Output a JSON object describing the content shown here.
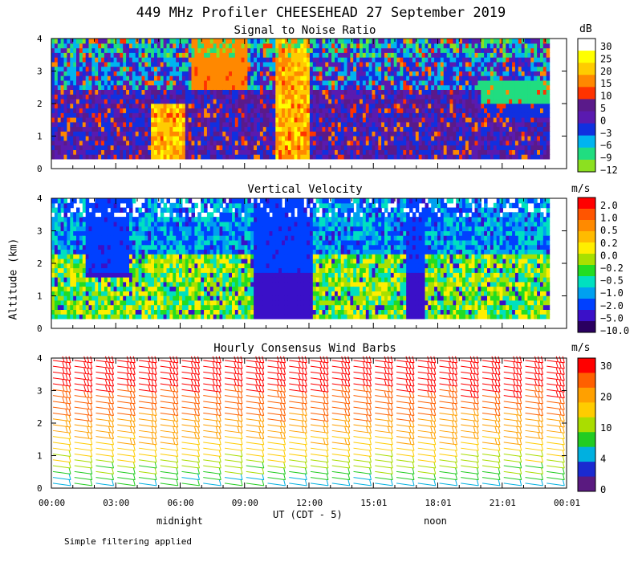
{
  "figure": {
    "title": "449 MHz Profiler CHEESEHEAD 27 September 2019",
    "ylabel": "Altitude (km)",
    "xlabel": "UT  (CDT - 5)",
    "x_ticks": [
      "00:00",
      "03:00",
      "06:00",
      "09:00",
      "12:00",
      "15:01",
      "18:01",
      "21:01",
      "00:01"
    ],
    "local_labels": [
      "midnight",
      "noon"
    ],
    "footnote": "Simple filtering applied"
  },
  "chart_data": [
    {
      "type": "heatmap",
      "title": "Signal to Noise Ratio",
      "unit": "dB",
      "ylim": [
        0,
        4
      ],
      "y_ticks": [
        "0",
        "1",
        "2",
        "3",
        "4"
      ],
      "xlim_hours": [
        0,
        24
      ],
      "colorbar": {
        "labels": [
          "30",
          "25",
          "20",
          "15",
          "10",
          "5",
          "0",
          "−3",
          "−6",
          "−9",
          "−12"
        ],
        "colors": [
          "#ffffff",
          "#ffff00",
          "#ffcc00",
          "#ff8800",
          "#ff3300",
          "#5a1a8a",
          "#5a1ab0",
          "#1030e0",
          "#00b4f0",
          "#20dd80",
          "#8ce020"
        ]
      }
    },
    {
      "type": "heatmap",
      "title": "Vertical Velocity",
      "unit": "m/s",
      "ylim": [
        0,
        4
      ],
      "y_ticks": [
        "0",
        "1",
        "2",
        "3",
        "4"
      ],
      "xlim_hours": [
        0,
        24
      ],
      "colorbar": {
        "labels": [
          "2.0",
          "1.0",
          "0.5",
          "0.2",
          "0.0",
          "−0.2",
          "−0.5",
          "−1.0",
          "−2.0",
          "−5.0",
          "−10.0"
        ],
        "colors": [
          "#ff0000",
          "#ff5500",
          "#ff8a00",
          "#ffbb00",
          "#ffee00",
          "#a8e000",
          "#22dd22",
          "#00e0c0",
          "#00a0f0",
          "#0040ff",
          "#3a10c8",
          "#2a0060"
        ]
      }
    },
    {
      "type": "scatter",
      "title": "Hourly Consensus Wind Barbs",
      "unit": "m/s",
      "ylim": [
        0,
        4
      ],
      "y_ticks": [
        "0",
        "1",
        "2",
        "3",
        "4"
      ],
      "xlim_hours": [
        0,
        24
      ],
      "colorbar": {
        "labels": [
          "30",
          "20",
          "10",
          "4",
          "0"
        ],
        "colors": [
          "#ff0000",
          "#ff6000",
          "#ffa000",
          "#ffcc00",
          "#aadd00",
          "#22cc22",
          "#00b0e0",
          "#1a2ad0",
          "#5a1a80"
        ]
      }
    }
  ]
}
